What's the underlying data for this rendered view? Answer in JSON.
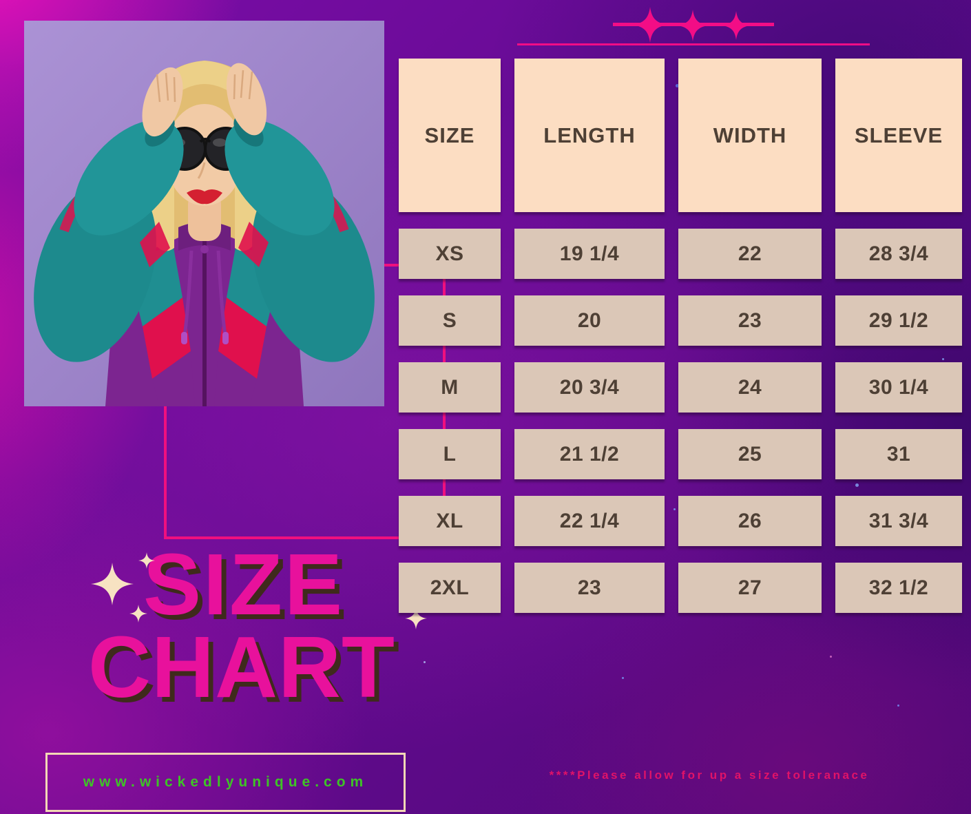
{
  "title": {
    "word1": "SIZE",
    "word2": "CHART"
  },
  "chart_data": {
    "type": "table",
    "title": "SIZE CHART",
    "columns": [
      "SIZE",
      "LENGTH",
      "WIDTH",
      "SLEEVE"
    ],
    "rows": [
      [
        "XS",
        "19 1/4",
        "22",
        "28 3/4"
      ],
      [
        "S",
        "20",
        "23",
        "29 1/2"
      ],
      [
        "M",
        "20 3/4",
        "24",
        "30 1/4"
      ],
      [
        "L",
        "21 1/2",
        "25",
        "31"
      ],
      [
        "XL",
        "22 1/4",
        "26",
        "31 3/4"
      ],
      [
        "2XL",
        "23",
        "27",
        "32 1/2"
      ]
    ]
  },
  "footer": {
    "website": "www.wickedlyunique.com",
    "disclaimer": "****Please allow for up a size toleranace"
  },
  "colors": {
    "accent_pink": "#e8119c",
    "line_pink": "#f30d86",
    "header_cell": "#fcddc2",
    "data_cell": "#dbc7b7",
    "cell_text": "#4e4035",
    "website_green": "#3ec426",
    "disclaimer_pink": "#e01368",
    "sparkle_cream": "#f7e2c2",
    "background_purple": "#650b93"
  }
}
